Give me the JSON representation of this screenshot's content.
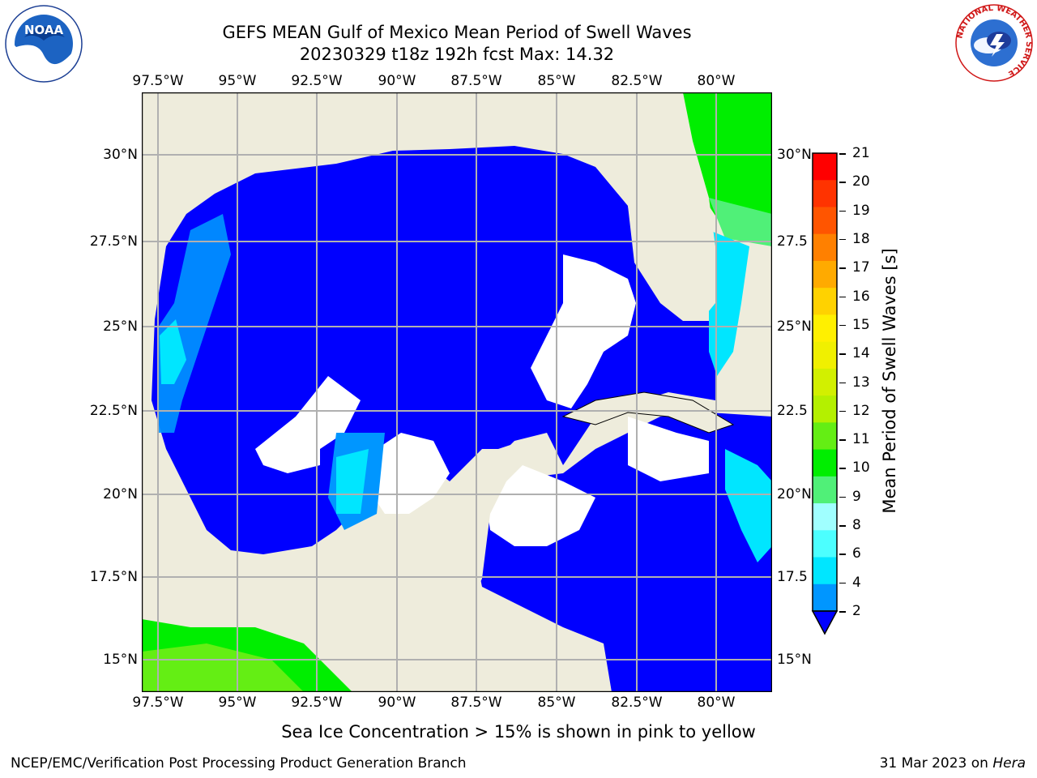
{
  "header": {
    "title_line1": "GEFS MEAN Gulf of Mexico Mean Period of Swell Waves",
    "title_line2": "20230329 t18z 192h fcst   Max: 14.32"
  },
  "map": {
    "lon_labels": [
      "97.5°W",
      "95°W",
      "92.5°W",
      "90°W",
      "87.5°W",
      "85°W",
      "82.5°W",
      "80°W"
    ],
    "lat_labels_left": [
      "30°N",
      "27.5°N",
      "25°N",
      "22.5°N",
      "20°N",
      "17.5°N",
      "15°N"
    ],
    "lat_labels_right": [
      "30°N",
      "27.5",
      "25°N",
      "22.5",
      "20°N",
      "17.5",
      "15°N"
    ],
    "colors": {
      "land": "#eeecdc",
      "no_data": "#ffffff",
      "grid": "#b0b0b0"
    }
  },
  "colorbar": {
    "title": "Mean Period of Swell Waves [s]",
    "labels": [
      "21",
      "20",
      "19",
      "18",
      "17",
      "16",
      "15",
      "14",
      "13",
      "12",
      "11",
      "10",
      "9",
      "8",
      "6",
      "4",
      "2"
    ],
    "colors": [
      "#ff0000",
      "#ff3300",
      "#ff5500",
      "#ff8000",
      "#ffaa00",
      "#ffd200",
      "#fff000",
      "#f0f000",
      "#d2f000",
      "#b4f000",
      "#64ee14",
      "#00ee00",
      "#50f078",
      "#a0ffff",
      "#4cffff",
      "#00e6ff",
      "#0096ff",
      "#0000ff"
    ]
  },
  "logos": {
    "noaa_text": "NOAA",
    "nws_text": "NATIONAL WEATHER SERVICE"
  },
  "footer": {
    "note": "Sea Ice Concentration > 15% is shown in pink to yellow",
    "left": "NCEP/EMC/Verification Post Processing Product Generation Branch",
    "right_prefix": "31 Mar 2023 on ",
    "right_machine": "Hera"
  }
}
